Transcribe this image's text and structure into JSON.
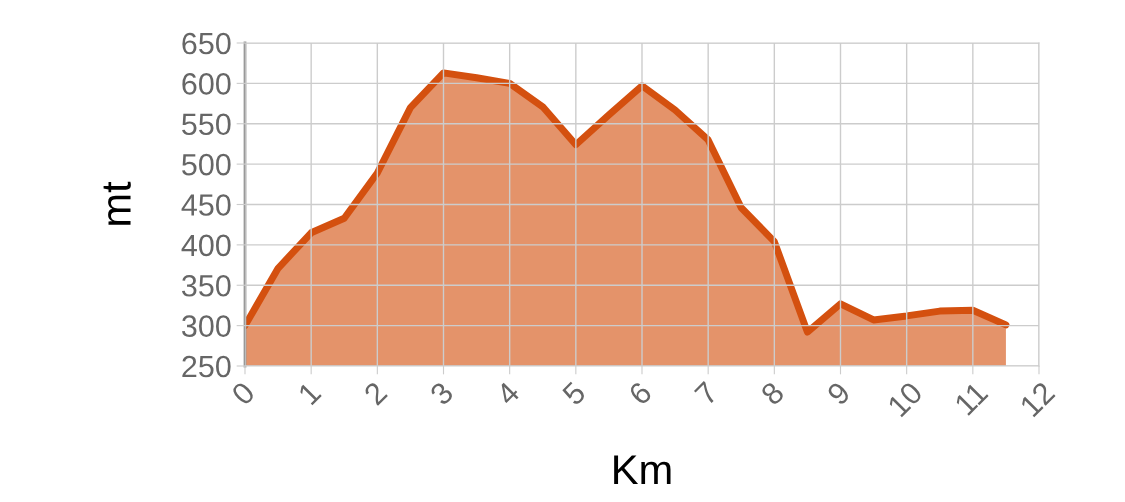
{
  "chart_data": {
    "type": "area",
    "xlabel": "Km",
    "ylabel": "mt",
    "x": [
      0,
      0.5,
      1,
      1.5,
      2,
      2.5,
      3,
      3.5,
      4,
      4.5,
      5,
      5.5,
      6,
      6.5,
      7,
      7.5,
      8,
      8.5,
      9,
      9.5,
      10,
      10.5,
      11,
      11.5
    ],
    "series": [
      {
        "color": "#d4500f",
        "values": [
          300,
          371,
          415,
          433,
          489,
          570,
          613,
          607,
          600,
          571,
          524,
          561,
          597,
          567,
          530,
          446,
          404,
          292,
          327,
          307,
          312,
          318,
          319,
          301
        ]
      }
    ],
    "xlim": [
      0,
      12
    ],
    "xticks": [
      0,
      1,
      2,
      3,
      4,
      5,
      6,
      7,
      8,
      9,
      10,
      11,
      12
    ],
    "ylim": [
      250,
      650
    ],
    "yticks": [
      250,
      300,
      350,
      400,
      450,
      500,
      550,
      600,
      650
    ],
    "grid": true,
    "legend": false,
    "marker": "none",
    "line_style": "solid"
  }
}
